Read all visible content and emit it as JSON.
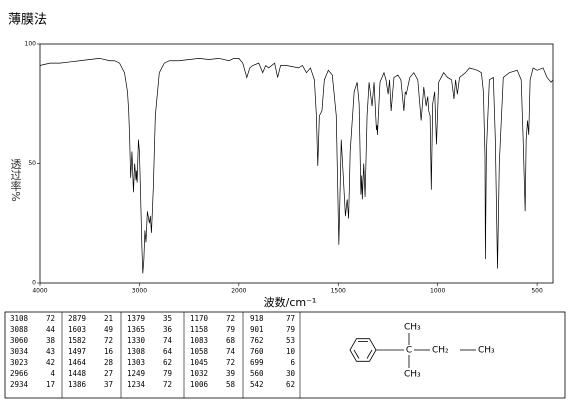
{
  "chart_data": {
    "type": "line",
    "title": "薄膜法",
    "x_label": "波数/cm⁻¹",
    "y_label": "透过率%",
    "xlim": [
      4000,
      420
    ],
    "x_break": {
      "value": 2000,
      "factor": 2
    },
    "xticks": [
      4000,
      3000,
      2000,
      1500,
      1000,
      500
    ],
    "ylim": [
      0,
      100
    ],
    "yticks": [
      0,
      50,
      100
    ],
    "x": [
      4000,
      3900,
      3800,
      3700,
      3600,
      3500,
      3400,
      3300,
      3250,
      3200,
      3150,
      3120,
      3108,
      3098,
      3088,
      3075,
      3060,
      3048,
      3034,
      3028,
      3023,
      3010,
      3000,
      2990,
      2975,
      2966,
      2955,
      2945,
      2934,
      2920,
      2900,
      2890,
      2879,
      2860,
      2840,
      2800,
      2750,
      2700,
      2600,
      2500,
      2400,
      2300,
      2200,
      2100,
      2050,
      2000,
      1980,
      1960,
      1945,
      1930,
      1900,
      1880,
      1865,
      1850,
      1820,
      1805,
      1790,
      1760,
      1700,
      1680,
      1660,
      1640,
      1620,
      1610,
      1603,
      1595,
      1582,
      1570,
      1550,
      1530,
      1510,
      1497,
      1485,
      1475,
      1464,
      1455,
      1448,
      1440,
      1420,
      1405,
      1395,
      1386,
      1382,
      1379,
      1372,
      1365,
      1355,
      1345,
      1330,
      1320,
      1308,
      1305,
      1303,
      1290,
      1270,
      1260,
      1249,
      1242,
      1234,
      1220,
      1200,
      1185,
      1170,
      1163,
      1158,
      1140,
      1120,
      1100,
      1083,
      1070,
      1058,
      1050,
      1045,
      1038,
      1032,
      1025,
      1015,
      1006,
      995,
      970,
      950,
      930,
      918,
      910,
      901,
      890,
      860,
      840,
      800,
      780,
      770,
      762,
      760,
      755,
      740,
      720,
      710,
      699,
      690,
      670,
      640,
      600,
      580,
      570,
      560,
      555,
      548,
      542,
      535,
      520,
      500,
      470,
      450,
      430,
      420
    ],
    "series": [
      {
        "color": "#000000",
        "values": [
          91,
          92,
          92,
          92.5,
          93,
          93.5,
          94,
          93,
          93,
          92,
          88,
          80,
          72,
          60,
          44,
          55,
          38,
          50,
          43,
          47,
          42,
          60,
          55,
          40,
          15,
          4,
          10,
          22,
          17,
          30,
          25,
          28,
          21,
          40,
          70,
          88,
          92,
          93,
          93,
          93.5,
          94,
          93.5,
          94,
          93,
          94,
          94,
          92,
          86,
          90,
          91,
          92,
          88,
          91,
          90,
          92,
          86,
          91,
          91,
          90,
          91,
          88,
          90,
          85,
          70,
          49,
          70,
          72,
          85,
          89,
          87,
          70,
          16,
          60,
          45,
          28,
          35,
          27,
          55,
          80,
          84,
          75,
          37,
          45,
          35,
          50,
          36,
          70,
          84,
          74,
          84,
          64,
          66,
          62,
          84,
          88,
          85,
          79,
          85,
          72,
          86,
          87,
          85,
          72,
          80,
          79,
          86,
          88,
          85,
          68,
          82,
          74,
          78,
          72,
          70,
          39,
          75,
          80,
          58,
          84,
          88,
          86,
          85,
          77,
          85,
          79,
          86,
          88,
          90,
          89,
          88,
          80,
          53,
          10,
          55,
          85,
          86,
          60,
          6,
          50,
          86,
          88,
          89,
          85,
          60,
          30,
          60,
          68,
          62,
          85,
          90,
          89,
          90,
          86,
          84,
          85
        ]
      }
    ],
    "peak_table": [
      [
        [
          3108,
          72
        ],
        [
          3088,
          44
        ],
        [
          3060,
          38
        ],
        [
          3034,
          43
        ],
        [
          3023,
          42
        ],
        [
          2966,
          4
        ],
        [
          2934,
          17
        ]
      ],
      [
        [
          2879,
          21
        ],
        [
          1603,
          49
        ],
        [
          1582,
          72
        ],
        [
          1497,
          16
        ],
        [
          1464,
          28
        ],
        [
          1448,
          27
        ],
        [
          1386,
          37
        ]
      ],
      [
        [
          1379,
          35
        ],
        [
          1365,
          36
        ],
        [
          1330,
          74
        ],
        [
          1308,
          64
        ],
        [
          1303,
          62
        ],
        [
          1249,
          79
        ],
        [
          1234,
          72
        ]
      ],
      [
        [
          1170,
          72
        ],
        [
          1158,
          79
        ],
        [
          1083,
          68
        ],
        [
          1058,
          74
        ],
        [
          1045,
          72
        ],
        [
          1032,
          39
        ],
        [
          1006,
          58
        ]
      ],
      [
        [
          918,
          77
        ],
        [
          901,
          79
        ],
        [
          762,
          53
        ],
        [
          760,
          10
        ],
        [
          699,
          6
        ],
        [
          560,
          30
        ],
        [
          542,
          62
        ]
      ]
    ],
    "structure": {
      "labels": [
        "CH₃",
        "C",
        "CH₂",
        "CH₃",
        "CH₃"
      ]
    }
  }
}
